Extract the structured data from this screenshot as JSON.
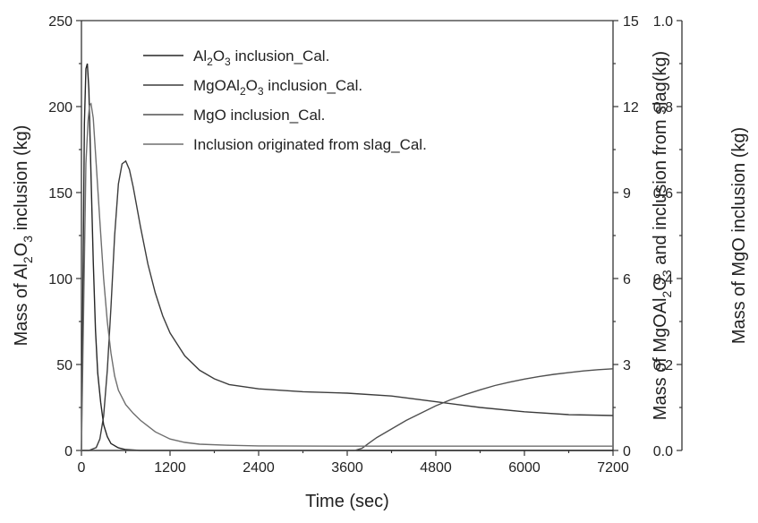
{
  "chart_data": {
    "type": "line",
    "title": "",
    "x_axis": {
      "label": "Time (sec)",
      "range": [
        0,
        7200
      ],
      "ticks": [
        0,
        1200,
        2400,
        3600,
        4800,
        6000,
        7200
      ]
    },
    "y_axes": [
      {
        "id": "left",
        "label_parts": [
          "Mass of Al",
          "2",
          "O",
          "3",
          " inclusion (kg)"
        ],
        "range": [
          0,
          250
        ],
        "ticks": [
          0,
          50,
          100,
          150,
          200,
          250
        ]
      },
      {
        "id": "right1",
        "label_parts": [
          "Mass of MgOAl",
          "2",
          "O",
          "3",
          " and inclusion from slag(kg)"
        ],
        "range": [
          0,
          15
        ],
        "ticks": [
          0,
          3,
          6,
          9,
          12,
          15
        ]
      },
      {
        "id": "right2",
        "label_parts": [
          "Mass of MgO inclusion (kg)"
        ],
        "range": [
          0,
          1.0
        ],
        "ticks": [
          "0.0",
          "0.2",
          "0.4",
          "0.6",
          "0.8",
          "1.0"
        ]
      }
    ],
    "grid": false,
    "legend_position": "top-left",
    "series": [
      {
        "name_parts": [
          "Al",
          "2",
          "O",
          "3",
          " inclusion_Cal."
        ],
        "axis": "left",
        "color": "#262626",
        "points": [
          [
            0,
            0
          ],
          [
            20,
            95
          ],
          [
            40,
            190
          ],
          [
            60,
            222
          ],
          [
            80,
            225
          ],
          [
            100,
            210
          ],
          [
            130,
            160
          ],
          [
            160,
            110
          ],
          [
            190,
            70
          ],
          [
            220,
            45
          ],
          [
            260,
            28
          ],
          [
            300,
            15
          ],
          [
            350,
            8
          ],
          [
            400,
            4
          ],
          [
            500,
            1.5
          ],
          [
            600,
            0.5
          ],
          [
            800,
            0
          ],
          [
            7200,
            0
          ]
        ]
      },
      {
        "name_parts": [
          "MgOAl",
          "2",
          "O",
          "3",
          " inclusion_Cal."
        ],
        "axis": "right1",
        "color": "#3c3c3c",
        "points": [
          [
            0,
            0
          ],
          [
            100,
            0
          ],
          [
            200,
            0.1
          ],
          [
            250,
            0.4
          ],
          [
            300,
            1.2
          ],
          [
            350,
            2.8
          ],
          [
            400,
            5.0
          ],
          [
            450,
            7.5
          ],
          [
            500,
            9.3
          ],
          [
            550,
            10.0
          ],
          [
            600,
            10.1
          ],
          [
            650,
            9.8
          ],
          [
            700,
            9.2
          ],
          [
            800,
            7.8
          ],
          [
            900,
            6.5
          ],
          [
            1000,
            5.5
          ],
          [
            1100,
            4.7
          ],
          [
            1200,
            4.1
          ],
          [
            1400,
            3.3
          ],
          [
            1600,
            2.8
          ],
          [
            1800,
            2.5
          ],
          [
            2000,
            2.3
          ],
          [
            2400,
            2.15
          ],
          [
            3000,
            2.05
          ],
          [
            3600,
            2.0
          ],
          [
            4200,
            1.9
          ],
          [
            4800,
            1.7
          ],
          [
            5400,
            1.5
          ],
          [
            6000,
            1.35
          ],
          [
            6600,
            1.25
          ],
          [
            7200,
            1.22
          ]
        ]
      },
      {
        "name_parts": [
          "MgO inclusion_Cal."
        ],
        "axis": "right2",
        "color": "#505050",
        "points": [
          [
            0,
            0
          ],
          [
            3700,
            0
          ],
          [
            3800,
            0.005
          ],
          [
            3900,
            0.018
          ],
          [
            4000,
            0.03
          ],
          [
            4200,
            0.05
          ],
          [
            4400,
            0.07
          ],
          [
            4600,
            0.087
          ],
          [
            4800,
            0.104
          ],
          [
            5000,
            0.118
          ],
          [
            5200,
            0.13
          ],
          [
            5400,
            0.141
          ],
          [
            5600,
            0.151
          ],
          [
            5800,
            0.159
          ],
          [
            6000,
            0.166
          ],
          [
            6200,
            0.172
          ],
          [
            6400,
            0.177
          ],
          [
            6600,
            0.181
          ],
          [
            6800,
            0.185
          ],
          [
            7000,
            0.188
          ],
          [
            7200,
            0.19
          ]
        ]
      },
      {
        "name_parts": [
          "Inclusion originated from slag_Cal."
        ],
        "axis": "right1",
        "color": "#6e6e6e",
        "points": [
          [
            0,
            0
          ],
          [
            30,
            5
          ],
          [
            60,
            10
          ],
          [
            90,
            11.5
          ],
          [
            110,
            12.05
          ],
          [
            130,
            12.1
          ],
          [
            160,
            11.6
          ],
          [
            200,
            10.0
          ],
          [
            250,
            8.0
          ],
          [
            300,
            6.0
          ],
          [
            350,
            4.5
          ],
          [
            400,
            3.4
          ],
          [
            450,
            2.6
          ],
          [
            500,
            2.1
          ],
          [
            600,
            1.6
          ],
          [
            700,
            1.3
          ],
          [
            800,
            1.05
          ],
          [
            900,
            0.85
          ],
          [
            1000,
            0.65
          ],
          [
            1200,
            0.4
          ],
          [
            1400,
            0.28
          ],
          [
            1600,
            0.22
          ],
          [
            2000,
            0.18
          ],
          [
            2400,
            0.16
          ],
          [
            3600,
            0.15
          ],
          [
            7200,
            0.15
          ]
        ]
      }
    ]
  }
}
